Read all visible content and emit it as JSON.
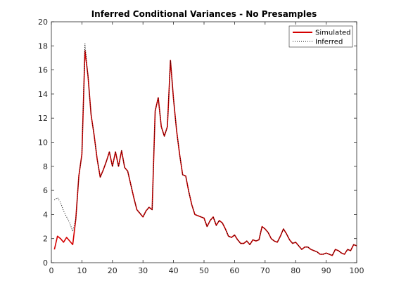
{
  "chart_data": {
    "type": "line",
    "title": "Inferred Conditional Variances - No Presamples",
    "xlabel": "",
    "ylabel": "",
    "xlim": [
      0,
      100
    ],
    "ylim": [
      0,
      20
    ],
    "xticks": [
      0,
      10,
      20,
      30,
      40,
      50,
      60,
      70,
      80,
      90,
      100
    ],
    "yticks": [
      0,
      2,
      4,
      6,
      8,
      10,
      12,
      14,
      16,
      18,
      20
    ],
    "grid": false,
    "legend_position": "top-right",
    "series": [
      {
        "name": "Simulated",
        "color": "#d40000",
        "style": "solid",
        "points": [
          [
            1,
            1.1
          ],
          [
            2,
            2.2
          ],
          [
            3,
            2.0
          ],
          [
            4,
            1.7
          ],
          [
            5,
            2.1
          ],
          [
            6,
            1.8
          ],
          [
            7,
            1.5
          ],
          [
            8,
            3.6
          ],
          [
            9,
            7.2
          ],
          [
            10,
            9.0
          ],
          [
            11,
            17.6
          ],
          [
            12,
            15.5
          ],
          [
            13,
            12.3
          ],
          [
            14,
            10.6
          ],
          [
            15,
            8.6
          ],
          [
            16,
            7.1
          ],
          [
            17,
            7.7
          ],
          [
            18,
            8.4
          ],
          [
            19,
            9.2
          ],
          [
            20,
            8.0
          ],
          [
            21,
            9.2
          ],
          [
            22,
            8.0
          ],
          [
            23,
            9.3
          ],
          [
            24,
            7.9
          ],
          [
            25,
            7.6
          ],
          [
            26,
            6.5
          ],
          [
            27,
            5.4
          ],
          [
            28,
            4.4
          ],
          [
            29,
            4.1
          ],
          [
            30,
            3.8
          ],
          [
            31,
            4.3
          ],
          [
            32,
            4.6
          ],
          [
            33,
            4.4
          ],
          [
            34,
            12.6
          ],
          [
            35,
            13.7
          ],
          [
            36,
            11.3
          ],
          [
            37,
            10.5
          ],
          [
            38,
            11.3
          ],
          [
            39,
            16.8
          ],
          [
            40,
            13.6
          ],
          [
            41,
            11.0
          ],
          [
            42,
            9.0
          ],
          [
            43,
            7.3
          ],
          [
            44,
            7.2
          ],
          [
            45,
            5.9
          ],
          [
            46,
            4.8
          ],
          [
            47,
            4.0
          ],
          [
            48,
            3.9
          ],
          [
            49,
            3.8
          ],
          [
            50,
            3.7
          ],
          [
            51,
            3.0
          ],
          [
            52,
            3.5
          ],
          [
            53,
            3.8
          ],
          [
            54,
            3.1
          ],
          [
            55,
            3.5
          ],
          [
            56,
            3.3
          ],
          [
            57,
            2.8
          ],
          [
            58,
            2.2
          ],
          [
            59,
            2.1
          ],
          [
            60,
            2.3
          ],
          [
            61,
            1.9
          ],
          [
            62,
            1.6
          ],
          [
            63,
            1.6
          ],
          [
            64,
            1.8
          ],
          [
            65,
            1.5
          ],
          [
            66,
            1.9
          ],
          [
            67,
            1.8
          ],
          [
            68,
            1.9
          ],
          [
            69,
            3.0
          ],
          [
            70,
            2.8
          ],
          [
            71,
            2.5
          ],
          [
            72,
            2.0
          ],
          [
            73,
            1.8
          ],
          [
            74,
            1.7
          ],
          [
            75,
            2.2
          ],
          [
            76,
            2.8
          ],
          [
            77,
            2.4
          ],
          [
            78,
            1.9
          ],
          [
            79,
            1.6
          ],
          [
            80,
            1.7
          ],
          [
            81,
            1.4
          ],
          [
            82,
            1.1
          ],
          [
            83,
            1.3
          ],
          [
            84,
            1.3
          ],
          [
            85,
            1.1
          ],
          [
            86,
            1.0
          ],
          [
            87,
            0.9
          ],
          [
            88,
            0.7
          ],
          [
            89,
            0.7
          ],
          [
            90,
            0.8
          ],
          [
            91,
            0.7
          ],
          [
            92,
            0.6
          ],
          [
            93,
            1.1
          ],
          [
            94,
            1.0
          ],
          [
            95,
            0.8
          ],
          [
            96,
            0.7
          ],
          [
            97,
            1.1
          ],
          [
            98,
            1.0
          ],
          [
            99,
            1.5
          ],
          [
            100,
            1.4
          ]
        ]
      },
      {
        "name": "Inferred",
        "color": "#000000",
        "style": "dotted",
        "points": [
          [
            1,
            5.2
          ],
          [
            2,
            5.4
          ],
          [
            3,
            5.0
          ],
          [
            4,
            4.3
          ],
          [
            5,
            3.8
          ],
          [
            6,
            3.3
          ],
          [
            7,
            2.6
          ],
          [
            8,
            3.6
          ],
          [
            9,
            7.2
          ],
          [
            10,
            9.0
          ],
          [
            11,
            18.2
          ],
          [
            12,
            15.5
          ],
          [
            13,
            12.3
          ],
          [
            14,
            10.6
          ],
          [
            15,
            8.6
          ],
          [
            16,
            7.1
          ],
          [
            17,
            7.7
          ],
          [
            18,
            8.4
          ],
          [
            19,
            9.2
          ],
          [
            20,
            8.0
          ],
          [
            21,
            9.2
          ],
          [
            22,
            8.0
          ],
          [
            23,
            9.3
          ],
          [
            24,
            7.9
          ],
          [
            25,
            7.6
          ],
          [
            26,
            6.5
          ],
          [
            27,
            5.4
          ],
          [
            28,
            4.4
          ],
          [
            29,
            4.1
          ],
          [
            30,
            3.8
          ],
          [
            31,
            4.3
          ],
          [
            32,
            4.6
          ],
          [
            33,
            4.4
          ],
          [
            34,
            12.6
          ],
          [
            35,
            13.7
          ],
          [
            36,
            11.3
          ],
          [
            37,
            10.5
          ],
          [
            38,
            11.3
          ],
          [
            39,
            16.8
          ],
          [
            40,
            13.6
          ],
          [
            41,
            11.0
          ],
          [
            42,
            9.0
          ],
          [
            43,
            7.3
          ],
          [
            44,
            7.2
          ],
          [
            45,
            5.9
          ],
          [
            46,
            4.8
          ],
          [
            47,
            4.0
          ],
          [
            48,
            3.9
          ],
          [
            49,
            3.8
          ],
          [
            50,
            3.7
          ],
          [
            51,
            3.0
          ],
          [
            52,
            3.5
          ],
          [
            53,
            3.8
          ],
          [
            54,
            3.1
          ],
          [
            55,
            3.5
          ],
          [
            56,
            3.3
          ],
          [
            57,
            2.8
          ],
          [
            58,
            2.2
          ],
          [
            59,
            2.1
          ],
          [
            60,
            2.3
          ],
          [
            61,
            1.9
          ],
          [
            62,
            1.6
          ],
          [
            63,
            1.6
          ],
          [
            64,
            1.8
          ],
          [
            65,
            1.5
          ],
          [
            66,
            1.9
          ],
          [
            67,
            1.8
          ],
          [
            68,
            1.9
          ],
          [
            69,
            3.0
          ],
          [
            70,
            2.8
          ],
          [
            71,
            2.5
          ],
          [
            72,
            2.0
          ],
          [
            73,
            1.8
          ],
          [
            74,
            1.7
          ],
          [
            75,
            2.2
          ],
          [
            76,
            2.8
          ],
          [
            77,
            2.4
          ],
          [
            78,
            1.9
          ],
          [
            79,
            1.6
          ],
          [
            80,
            1.7
          ],
          [
            81,
            1.4
          ],
          [
            82,
            1.1
          ],
          [
            83,
            1.3
          ],
          [
            84,
            1.3
          ],
          [
            85,
            1.1
          ],
          [
            86,
            1.0
          ],
          [
            87,
            0.9
          ],
          [
            88,
            0.7
          ],
          [
            89,
            0.7
          ],
          [
            90,
            0.8
          ],
          [
            91,
            0.7
          ],
          [
            92,
            0.6
          ],
          [
            93,
            1.1
          ],
          [
            94,
            1.0
          ],
          [
            95,
            0.8
          ],
          [
            96,
            0.7
          ],
          [
            97,
            1.1
          ],
          [
            98,
            1.0
          ],
          [
            99,
            1.5
          ],
          [
            100,
            1.4
          ]
        ]
      }
    ]
  }
}
